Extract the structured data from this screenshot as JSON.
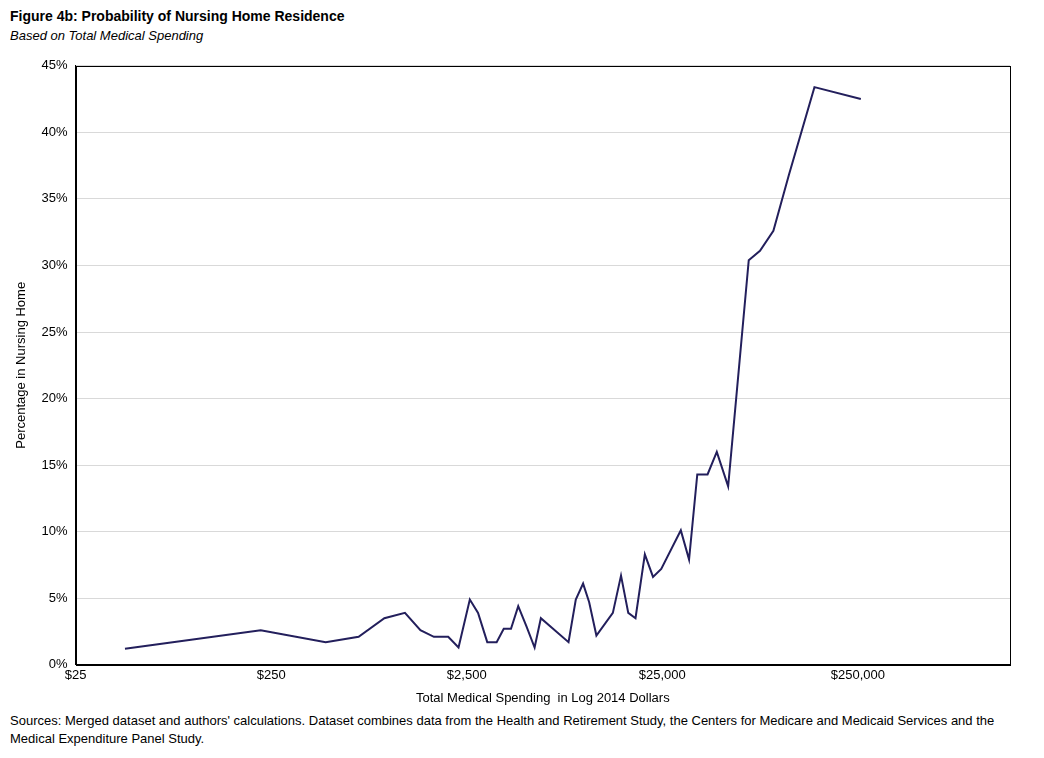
{
  "chart_data": {
    "type": "line",
    "title": "Figure 4b: Probability of Nursing Home Residence",
    "subtitle": "Based on Total Medical Spending",
    "x_label": "Total Medical Spending  in Log 2014 Dollars",
    "y_label": "Percentage in Nursing Home",
    "source": "Sources: Merged dataset and authors' calculations. Dataset combines data from the Health and Retirement Study, the Centers for Medicare and Medicaid Services and the Medical Expenditure Panel Study.",
    "log": "x",
    "grid": "y",
    "color": "#231f5c",
    "marker": "none",
    "line_style": "solid",
    "x": [
      44.7,
      221,
      475,
      700,
      948,
      1208,
      1449,
      1698,
      2010,
      2270,
      2593,
      2857,
      3184,
      3556,
      3866,
      4210,
      4585,
      5046,
      5560,
      5985,
      8290,
      9030,
      9840,
      10570,
      11510,
      13970,
      15380,
      16750,
      18240,
      20360,
      22420,
      24700,
      31100,
      34270,
      37750,
      42600,
      47500,
      54300,
      62100,
      69200,
      79000,
      92500,
      111000,
      150000,
      259000
    ],
    "values": [
      1.2,
      2.6,
      1.7,
      2.1,
      3.5,
      3.9,
      2.6,
      2.1,
      2.1,
      1.3,
      4.9,
      3.9,
      1.7,
      1.7,
      2.7,
      2.7,
      4.4,
      2.9,
      1.3,
      3.5,
      1.7,
      4.9,
      6.1,
      4.7,
      2.2,
      3.9,
      6.7,
      3.9,
      3.5,
      8.3,
      6.6,
      7.2,
      10.1,
      7.9,
      14.3,
      14.3,
      16.0,
      13.4,
      22.8,
      30.4,
      31.1,
      32.6,
      36.8,
      43.4,
      42.5
    ],
    "xlim": [
      25,
      1500000
    ],
    "xticks": [
      {
        "value": 25,
        "label": "$25"
      },
      {
        "value": 250,
        "label": "$250"
      },
      {
        "value": 2500,
        "label": "$2,500"
      },
      {
        "value": 25000,
        "label": "$25,000"
      },
      {
        "value": 250000,
        "label": "$250,000"
      }
    ],
    "ylim": [
      0,
      45
    ],
    "yticks": [
      {
        "value": 0,
        "label": "0%"
      },
      {
        "value": 5,
        "label": "5%"
      },
      {
        "value": 10,
        "label": "10%"
      },
      {
        "value": 15,
        "label": "15%"
      },
      {
        "value": 20,
        "label": "20%"
      },
      {
        "value": 25,
        "label": "25%"
      },
      {
        "value": 30,
        "label": "30%"
      },
      {
        "value": 35,
        "label": "35%"
      },
      {
        "value": 40,
        "label": "40%"
      },
      {
        "value": 45,
        "label": "45%"
      }
    ]
  }
}
